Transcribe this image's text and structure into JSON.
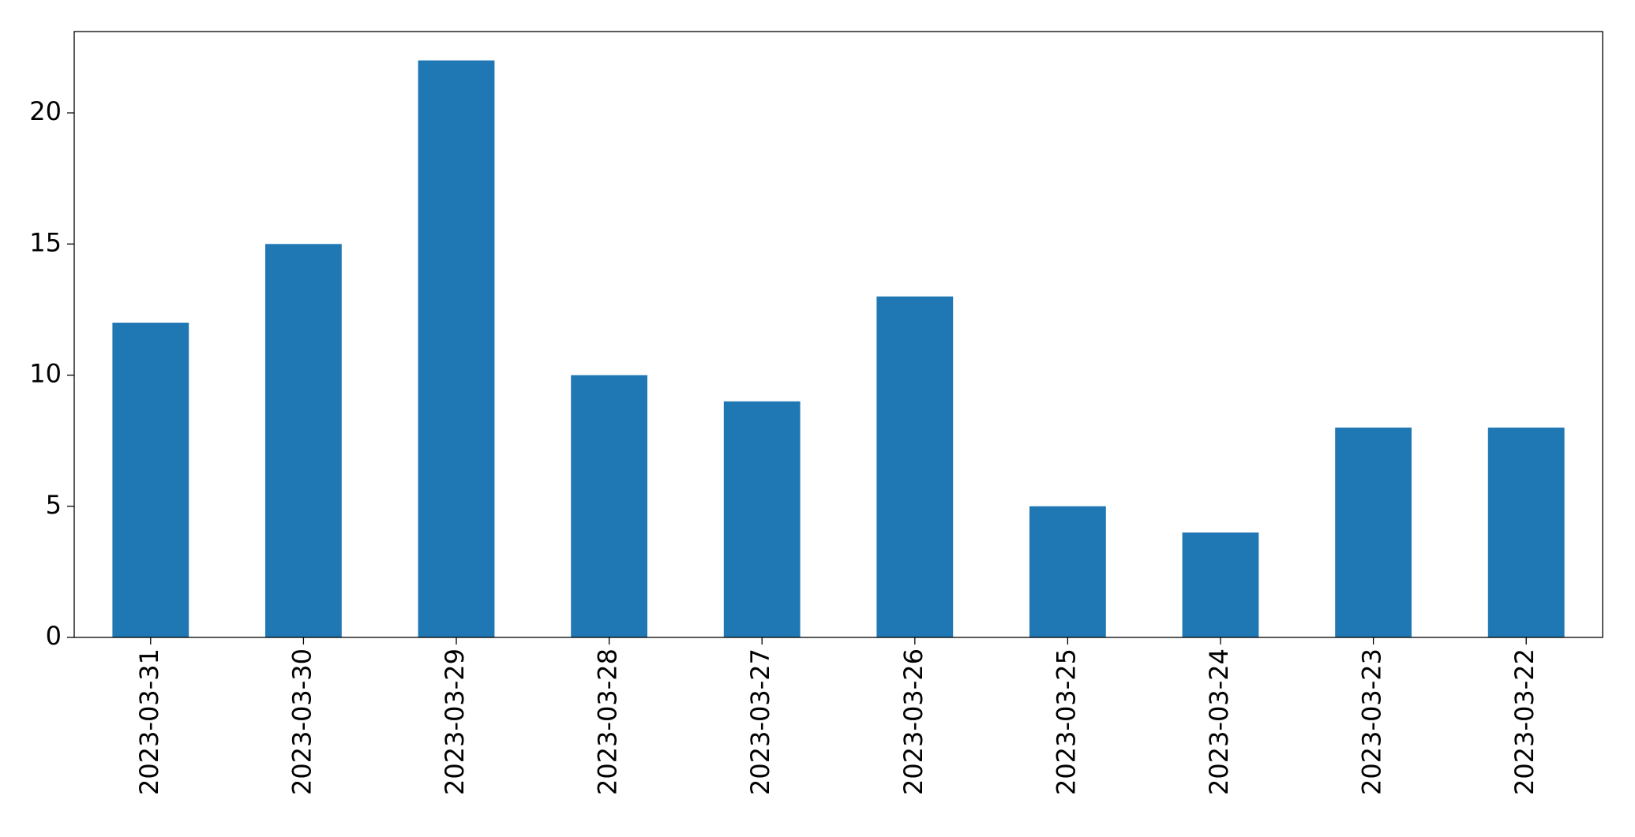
{
  "chart_data": {
    "type": "bar",
    "categories": [
      "2023-03-31",
      "2023-03-30",
      "2023-03-29",
      "2023-03-28",
      "2023-03-27",
      "2023-03-26",
      "2023-03-25",
      "2023-03-24",
      "2023-03-23",
      "2023-03-22"
    ],
    "values": [
      12,
      15,
      22,
      10,
      9,
      13,
      5,
      4,
      8,
      8
    ],
    "color": "#1f77b4",
    "ylim": [
      0,
      23.1
    ],
    "yticks": [
      0,
      5,
      10,
      15,
      20
    ],
    "grid": false
  }
}
